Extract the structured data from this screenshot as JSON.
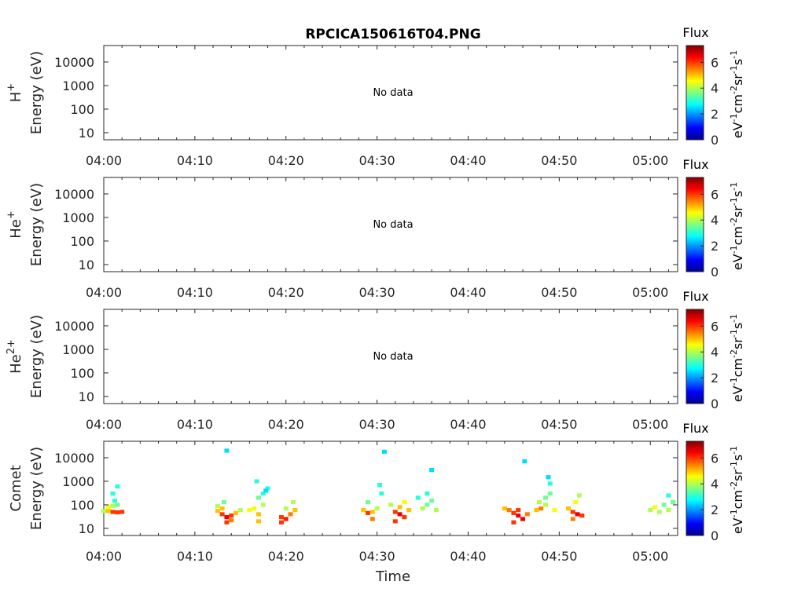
{
  "chart_data": {
    "type": "heatmap",
    "title": "RPCICA150616T04.PNG",
    "xlabel": "Time",
    "x_ticks": [
      "04:00",
      "04:10",
      "04:20",
      "04:30",
      "04:40",
      "04:50",
      "05:00"
    ],
    "x_range_minutes": [
      0,
      63
    ],
    "y_scale": "log",
    "y_ticks": [
      "10",
      "100",
      "1000",
      "10000"
    ],
    "y_range": [
      5,
      50000
    ],
    "colorbar": {
      "label": "Flux",
      "units": "eV-1cm-2sr-1s-1",
      "ticks": [
        "0",
        "2",
        "4",
        "6"
      ],
      "range": [
        0,
        7.3
      ],
      "colormap": "jet"
    },
    "panels": [
      {
        "species": "H",
        "charge": "+",
        "ylabel": "Energy (eV)",
        "message": "No data",
        "cells": []
      },
      {
        "species": "He",
        "charge": "+",
        "ylabel": "Energy (eV)",
        "message": "No data",
        "cells": []
      },
      {
        "species": "He",
        "charge": "2+",
        "ylabel": "Energy (eV)",
        "message": "No data",
        "cells": []
      },
      {
        "species": "Comet",
        "charge": "",
        "ylabel": "Energy (eV)",
        "message": "",
        "cells": [
          [
            0.0,
            55,
            4
          ],
          [
            0.5,
            55,
            5
          ],
          [
            1.0,
            50,
            6
          ],
          [
            1.5,
            48,
            6
          ],
          [
            2.0,
            50,
            6
          ],
          [
            0.5,
            80,
            4.5
          ],
          [
            1.0,
            90,
            4
          ],
          [
            1.5,
            100,
            3.5
          ],
          [
            1.2,
            150,
            3
          ],
          [
            1.0,
            300,
            3
          ],
          [
            1.5,
            600,
            3
          ],
          [
            12.5,
            55,
            5
          ],
          [
            13.0,
            40,
            6
          ],
          [
            13.5,
            30,
            6.5
          ],
          [
            14.0,
            35,
            6
          ],
          [
            13.0,
            70,
            5
          ],
          [
            12.5,
            90,
            4
          ],
          [
            13.5,
            18,
            6
          ],
          [
            14.0,
            22,
            5.5
          ],
          [
            14.5,
            45,
            5
          ],
          [
            15.0,
            60,
            4
          ],
          [
            13.2,
            130,
            3.5
          ],
          [
            16.0,
            60,
            4.5
          ],
          [
            16.5,
            70,
            4.5
          ],
          [
            17.0,
            40,
            5
          ],
          [
            17.0,
            20,
            5
          ],
          [
            17.5,
            100,
            4
          ],
          [
            17.5,
            300,
            3
          ],
          [
            18.0,
            500,
            3
          ],
          [
            17.0,
            200,
            3.5
          ],
          [
            16.8,
            1000,
            3
          ],
          [
            17.8,
            400,
            2.5
          ],
          [
            19.5,
            30,
            6
          ],
          [
            19.5,
            18,
            6
          ],
          [
            20.0,
            25,
            6.2
          ],
          [
            20.5,
            40,
            5.5
          ],
          [
            21.0,
            60,
            5
          ],
          [
            20.0,
            70,
            4
          ],
          [
            20.8,
            130,
            4
          ],
          [
            13.5,
            20000,
            2.5
          ],
          [
            28.5,
            60,
            5
          ],
          [
            29.0,
            45,
            6
          ],
          [
            29.5,
            50,
            5
          ],
          [
            29.5,
            25,
            5.5
          ],
          [
            30.0,
            70,
            4
          ],
          [
            29.0,
            130,
            3.5
          ],
          [
            30.5,
            300,
            3
          ],
          [
            30.3,
            700,
            3
          ],
          [
            30.8,
            18000,
            2.5
          ],
          [
            32.0,
            50,
            6
          ],
          [
            32.5,
            40,
            6.5
          ],
          [
            33.0,
            30,
            6
          ],
          [
            32.5,
            80,
            5
          ],
          [
            33.0,
            130,
            4.5
          ],
          [
            33.5,
            60,
            5
          ],
          [
            32.0,
            20,
            6
          ],
          [
            31.5,
            100,
            4
          ],
          [
            35.0,
            70,
            4
          ],
          [
            35.5,
            100,
            3.5
          ],
          [
            36.0,
            150,
            3.5
          ],
          [
            36.5,
            60,
            4
          ],
          [
            35.5,
            300,
            3
          ],
          [
            36.0,
            3000,
            2.5
          ],
          [
            34.5,
            200,
            3
          ],
          [
            44.0,
            70,
            5
          ],
          [
            44.5,
            60,
            5.5
          ],
          [
            45.0,
            45,
            6
          ],
          [
            45.5,
            35,
            6.5
          ],
          [
            46.0,
            25,
            6.5
          ],
          [
            45.5,
            60,
            6
          ],
          [
            46.5,
            40,
            5.5
          ],
          [
            45.0,
            18,
            6
          ],
          [
            46.2,
            7000,
            2.5
          ],
          [
            47.5,
            60,
            5
          ],
          [
            48.0,
            70,
            5.5
          ],
          [
            48.5,
            100,
            4
          ],
          [
            48.5,
            200,
            3.5
          ],
          [
            49.0,
            300,
            3.5
          ],
          [
            49.0,
            800,
            3
          ],
          [
            48.8,
            1500,
            2.5
          ],
          [
            49.5,
            60,
            4.5
          ],
          [
            47.8,
            130,
            4
          ],
          [
            51.0,
            70,
            5
          ],
          [
            51.5,
            50,
            6
          ],
          [
            52.0,
            40,
            6.5
          ],
          [
            52.5,
            35,
            6
          ],
          [
            51.8,
            130,
            4.5
          ],
          [
            52.2,
            250,
            4
          ],
          [
            51.5,
            25,
            5.5
          ],
          [
            60.0,
            60,
            4
          ],
          [
            60.5,
            80,
            4.5
          ],
          [
            61.0,
            50,
            4
          ],
          [
            61.5,
            100,
            3.5
          ],
          [
            62.0,
            60,
            4
          ],
          [
            62.5,
            130,
            3.5
          ],
          [
            62.0,
            250,
            3
          ]
        ]
      }
    ]
  }
}
